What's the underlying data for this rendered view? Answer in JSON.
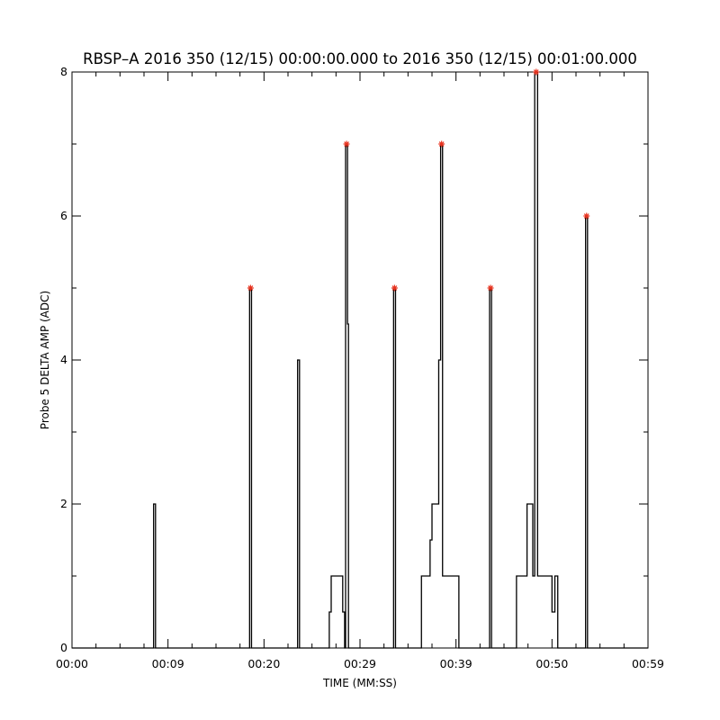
{
  "chart_data": {
    "type": "line",
    "title": "RBSP–A 2016 350 (12/15) 00:00:00.000 to 2016 350 (12/15) 00:01:00.000",
    "xlabel": "TIME (MM:SS)",
    "ylabel": "Probe 5 DELTA AMP (ADC)",
    "xlim": [
      0,
      60
    ],
    "ylim": [
      0,
      8
    ],
    "x_ticks": [
      {
        "value": 0,
        "label": "00:00"
      },
      {
        "value": 10,
        "label": "00:09"
      },
      {
        "value": 20,
        "label": "00:20"
      },
      {
        "value": 30,
        "label": "00:29"
      },
      {
        "value": 40,
        "label": "00:39"
      },
      {
        "value": 50,
        "label": "00:50"
      },
      {
        "value": 60,
        "label": "00:59"
      }
    ],
    "y_ticks": [
      0,
      2,
      4,
      6,
      8
    ],
    "y_minor_step": 1,
    "x_minor_step": 2.5,
    "grid": false,
    "line_color": "#000000",
    "marker_color": "#e8321e",
    "series": [
      {
        "values": [
          [
            0,
            0
          ],
          [
            8.5,
            0
          ],
          [
            8.5,
            2
          ],
          [
            8.7,
            2
          ],
          [
            8.7,
            0
          ],
          [
            18.5,
            0
          ],
          [
            18.5,
            5
          ],
          [
            18.7,
            5
          ],
          [
            18.7,
            0
          ],
          [
            23.5,
            0
          ],
          [
            23.5,
            4
          ],
          [
            23.7,
            4
          ],
          [
            23.7,
            0
          ],
          [
            26.8,
            0
          ],
          [
            26.8,
            0.5
          ],
          [
            27.0,
            0.5
          ],
          [
            27.0,
            1
          ],
          [
            28.2,
            1
          ],
          [
            28.2,
            0.5
          ],
          [
            28.4,
            0.5
          ],
          [
            28.4,
            0
          ],
          [
            28.4,
            0
          ],
          [
            28.5,
            0
          ],
          [
            28.5,
            7
          ],
          [
            28.7,
            7
          ],
          [
            28.7,
            4.5
          ],
          [
            28.8,
            4.5
          ],
          [
            28.8,
            0
          ],
          [
            33.5,
            0
          ],
          [
            33.5,
            5
          ],
          [
            33.7,
            5
          ],
          [
            33.7,
            0
          ],
          [
            36.4,
            0
          ],
          [
            36.4,
            1
          ],
          [
            37.3,
            1
          ],
          [
            37.3,
            1.5
          ],
          [
            37.5,
            1.5
          ],
          [
            37.5,
            2
          ],
          [
            38.2,
            2
          ],
          [
            38.2,
            4
          ],
          [
            38.4,
            4
          ],
          [
            38.4,
            7
          ],
          [
            38.6,
            7
          ],
          [
            38.6,
            1
          ],
          [
            40.3,
            1
          ],
          [
            40.3,
            0
          ],
          [
            43.5,
            0
          ],
          [
            43.5,
            5
          ],
          [
            43.7,
            5
          ],
          [
            43.7,
            0
          ],
          [
            46.3,
            0
          ],
          [
            46.3,
            1
          ],
          [
            47.4,
            1
          ],
          [
            47.4,
            2
          ],
          [
            48.0,
            2
          ],
          [
            48.0,
            1
          ],
          [
            48.2,
            1
          ],
          [
            48.2,
            8
          ],
          [
            48.5,
            8
          ],
          [
            48.5,
            1
          ],
          [
            50.0,
            1
          ],
          [
            50.0,
            0.5
          ],
          [
            50.3,
            0.5
          ],
          [
            50.3,
            1
          ],
          [
            50.6,
            1
          ],
          [
            50.6,
            0
          ],
          [
            53.5,
            0
          ],
          [
            53.5,
            6
          ],
          [
            53.7,
            6
          ],
          [
            53.7,
            0
          ],
          [
            60,
            0
          ]
        ]
      }
    ],
    "markers": [
      {
        "x": 18.6,
        "y": 5
      },
      {
        "x": 28.6,
        "y": 7
      },
      {
        "x": 33.6,
        "y": 5
      },
      {
        "x": 38.5,
        "y": 7
      },
      {
        "x": 43.6,
        "y": 5
      },
      {
        "x": 48.35,
        "y": 8
      },
      {
        "x": 53.6,
        "y": 6
      }
    ]
  }
}
